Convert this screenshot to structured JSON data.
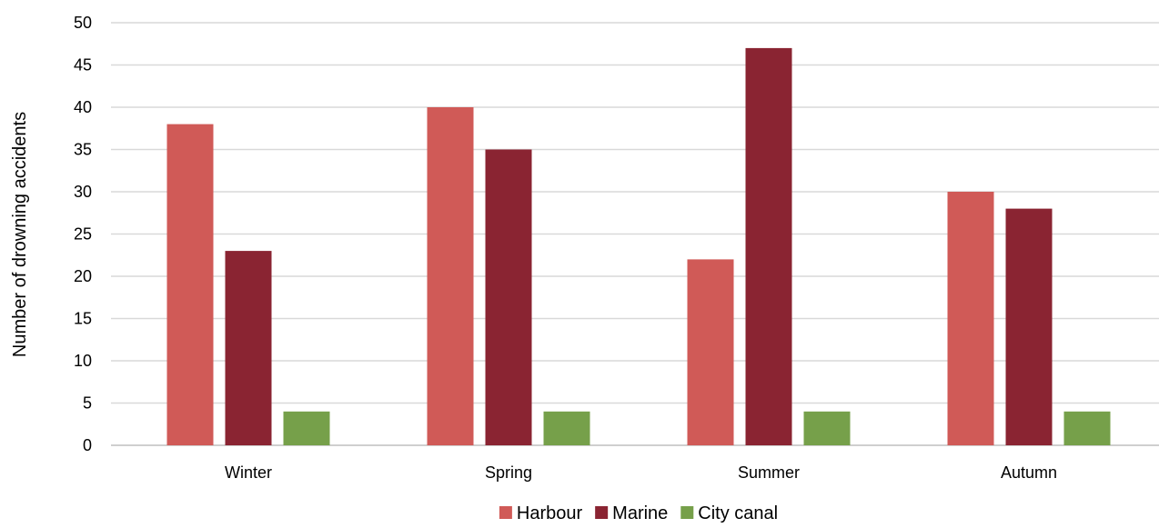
{
  "chart_data": {
    "type": "bar",
    "title": "",
    "xlabel": "",
    "ylabel": "Number of drowning accidents",
    "ylim": [
      0,
      50
    ],
    "ytick_step": 5,
    "grid": true,
    "legend_position": "bottom",
    "categories": [
      "Winter",
      "Spring",
      "Summer",
      "Autumn"
    ],
    "series": [
      {
        "name": "Harbour",
        "color": "#d05a57",
        "values": [
          38,
          40,
          22,
          30
        ]
      },
      {
        "name": "Marine",
        "color": "#8a2432",
        "values": [
          23,
          35,
          47,
          28
        ]
      },
      {
        "name": "City canal",
        "color": "#76a04a",
        "values": [
          4,
          4,
          4,
          4
        ]
      }
    ]
  }
}
